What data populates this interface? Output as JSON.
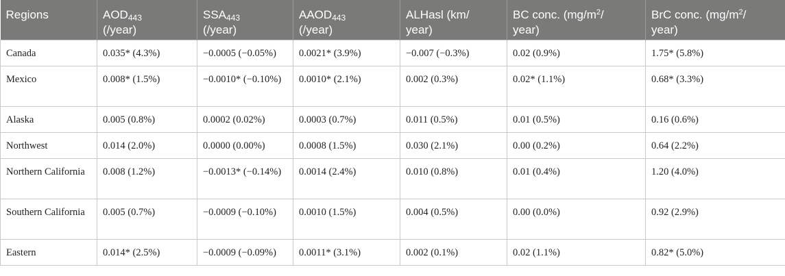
{
  "header": {
    "regions": "Regions",
    "aod_base": "AOD",
    "aod_sub": "443",
    "aod_unit": "(/year)",
    "ssa_base": "SSA",
    "ssa_sub": "443",
    "ssa_unit": "(/year)",
    "aaod_base": "AAOD",
    "aaod_sub": "443",
    "aaod_unit": "(/year)",
    "alh_line1": "ALHasl (km/",
    "alh_line2": "year)",
    "bc_line1": "BC conc. (mg/m",
    "bc_sup": "2",
    "bc_slash": "/",
    "bc_line2": "year)",
    "brc_line1": "BrC conc. (mg/m",
    "brc_sup": "2",
    "brc_slash": "/",
    "brc_line2": "year)"
  },
  "rows": [
    {
      "region": "Canada",
      "aod": "0.035* (4.3%)",
      "ssa": "−0.0005 (−0.05%)",
      "aaod": "0.0021* (3.9%)",
      "alh": "−0.007 (−0.3%)",
      "bc": "0.02 (0.9%)",
      "brc": "1.75* (5.8%)"
    },
    {
      "region": "Mexico",
      "aod": "0.008* (1.5%)",
      "ssa": "−0.0010* (−0.10%)",
      "aaod": "0.0010* (2.1%)",
      "alh": "0.002 (0.3%)",
      "bc": "0.02* (1.1%)",
      "brc": "0.68* (3.3%)"
    },
    {
      "region": "Alaska",
      "aod": "0.005 (0.8%)",
      "ssa": "0.0002 (0.02%)",
      "aaod": "0.0003 (0.7%)",
      "alh": "0.011 (0.5%)",
      "bc": "0.01 (0.5%)",
      "brc": "0.16 (0.6%)"
    },
    {
      "region": "Northwest",
      "aod": "0.014 (2.0%)",
      "ssa": "0.0000 (0.00%)",
      "aaod": "0.0008 (1.5%)",
      "alh": "0.030 (2.1%)",
      "bc": "0.00 (0.2%)",
      "brc": "0.64 (2.2%)"
    },
    {
      "region": "Northern California",
      "aod": "0.008 (1.2%)",
      "ssa": "−0.0013* (−0.14%)",
      "aaod": "0.0014 (2.4%)",
      "alh": "0.010 (0.8%)",
      "bc": "0.01 (0.4%)",
      "brc": "1.20 (4.0%)"
    },
    {
      "region": "Southern California",
      "aod": "0.005 (0.7%)",
      "ssa": "−0.0009 (−0.10%)",
      "aaod": "0.0010 (1.5%)",
      "alh": "0.004 (0.5%)",
      "bc": "0.00 (0.0%)",
      "brc": "0.92 (2.9%)"
    },
    {
      "region": "Eastern",
      "aod": "0.014* (2.5%)",
      "ssa": "−0.0009 (−0.09%)",
      "aaod": "0.0011* (3.1%)",
      "alh": "0.002 (0.1%)",
      "bc": "0.02 (1.1%)",
      "brc": "0.82* (5.0%)"
    }
  ]
}
